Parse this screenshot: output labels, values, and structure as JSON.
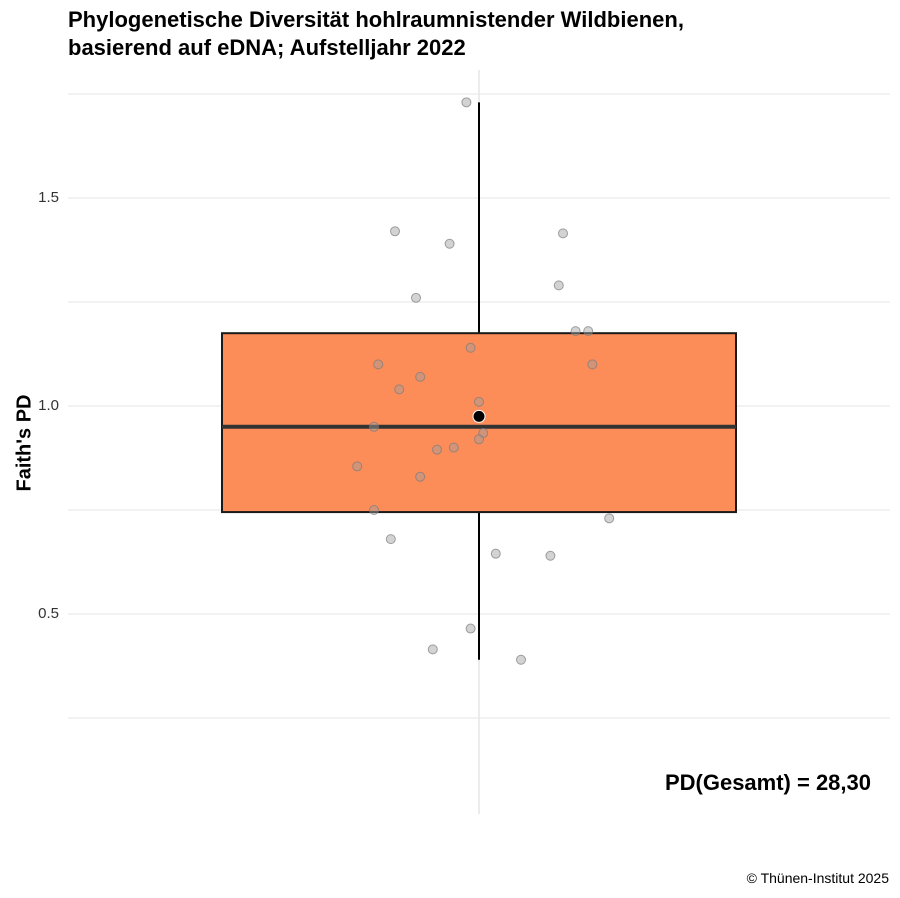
{
  "title_lines": [
    "Phylogenetische Diversität hohlraumnistender Wildbienen,",
    "basierend auf eDNA; Aufstelljahr 2022"
  ],
  "caption": "© Thünen-Institut 2025",
  "annotation": "PD(Gesamt) = 28,30",
  "colors": {
    "box_fill": "#FC8D59",
    "box_stroke": "#1a1a1a",
    "points": "#bdbdbd",
    "mean": "#000000",
    "grid": "#e6e6e6"
  },
  "chart_data": {
    "type": "box",
    "ylabel": "Faith's PD",
    "xlabel": "",
    "ylim": [
      0.22,
      1.74
    ],
    "yticks": [
      0.5,
      1.0,
      1.5
    ],
    "ytick_labels": [
      "0.5",
      "1.0",
      "1.5"
    ],
    "grid": true,
    "box": {
      "whisker_low": 0.39,
      "q1": 0.745,
      "median": 0.95,
      "q3": 1.175,
      "whisker_high": 1.73,
      "mean": 0.975
    },
    "points": [
      {
        "x": -0.03,
        "y": 1.73
      },
      {
        "x": -0.2,
        "y": 1.42
      },
      {
        "x": -0.07,
        "y": 1.39
      },
      {
        "x": 0.2,
        "y": 1.415
      },
      {
        "x": 0.19,
        "y": 1.29
      },
      {
        "x": -0.15,
        "y": 1.26
      },
      {
        "x": 0.23,
        "y": 1.18
      },
      {
        "x": 0.26,
        "y": 1.18
      },
      {
        "x": -0.02,
        "y": 1.14
      },
      {
        "x": -0.24,
        "y": 1.1
      },
      {
        "x": 0.27,
        "y": 1.1
      },
      {
        "x": -0.14,
        "y": 1.07
      },
      {
        "x": -0.19,
        "y": 1.04
      },
      {
        "x": 0.0,
        "y": 1.01
      },
      {
        "x": -0.25,
        "y": 0.95
      },
      {
        "x": 0.01,
        "y": 0.935
      },
      {
        "x": 0.0,
        "y": 0.92
      },
      {
        "x": -0.06,
        "y": 0.9
      },
      {
        "x": -0.1,
        "y": 0.895
      },
      {
        "x": -0.29,
        "y": 0.855
      },
      {
        "x": -0.14,
        "y": 0.83
      },
      {
        "x": -0.25,
        "y": 0.75
      },
      {
        "x": 0.31,
        "y": 0.73
      },
      {
        "x": -0.21,
        "y": 0.68
      },
      {
        "x": 0.04,
        "y": 0.645
      },
      {
        "x": 0.17,
        "y": 0.64
      },
      {
        "x": -0.02,
        "y": 0.465
      },
      {
        "x": -0.11,
        "y": 0.415
      },
      {
        "x": 0.1,
        "y": 0.39
      }
    ]
  }
}
